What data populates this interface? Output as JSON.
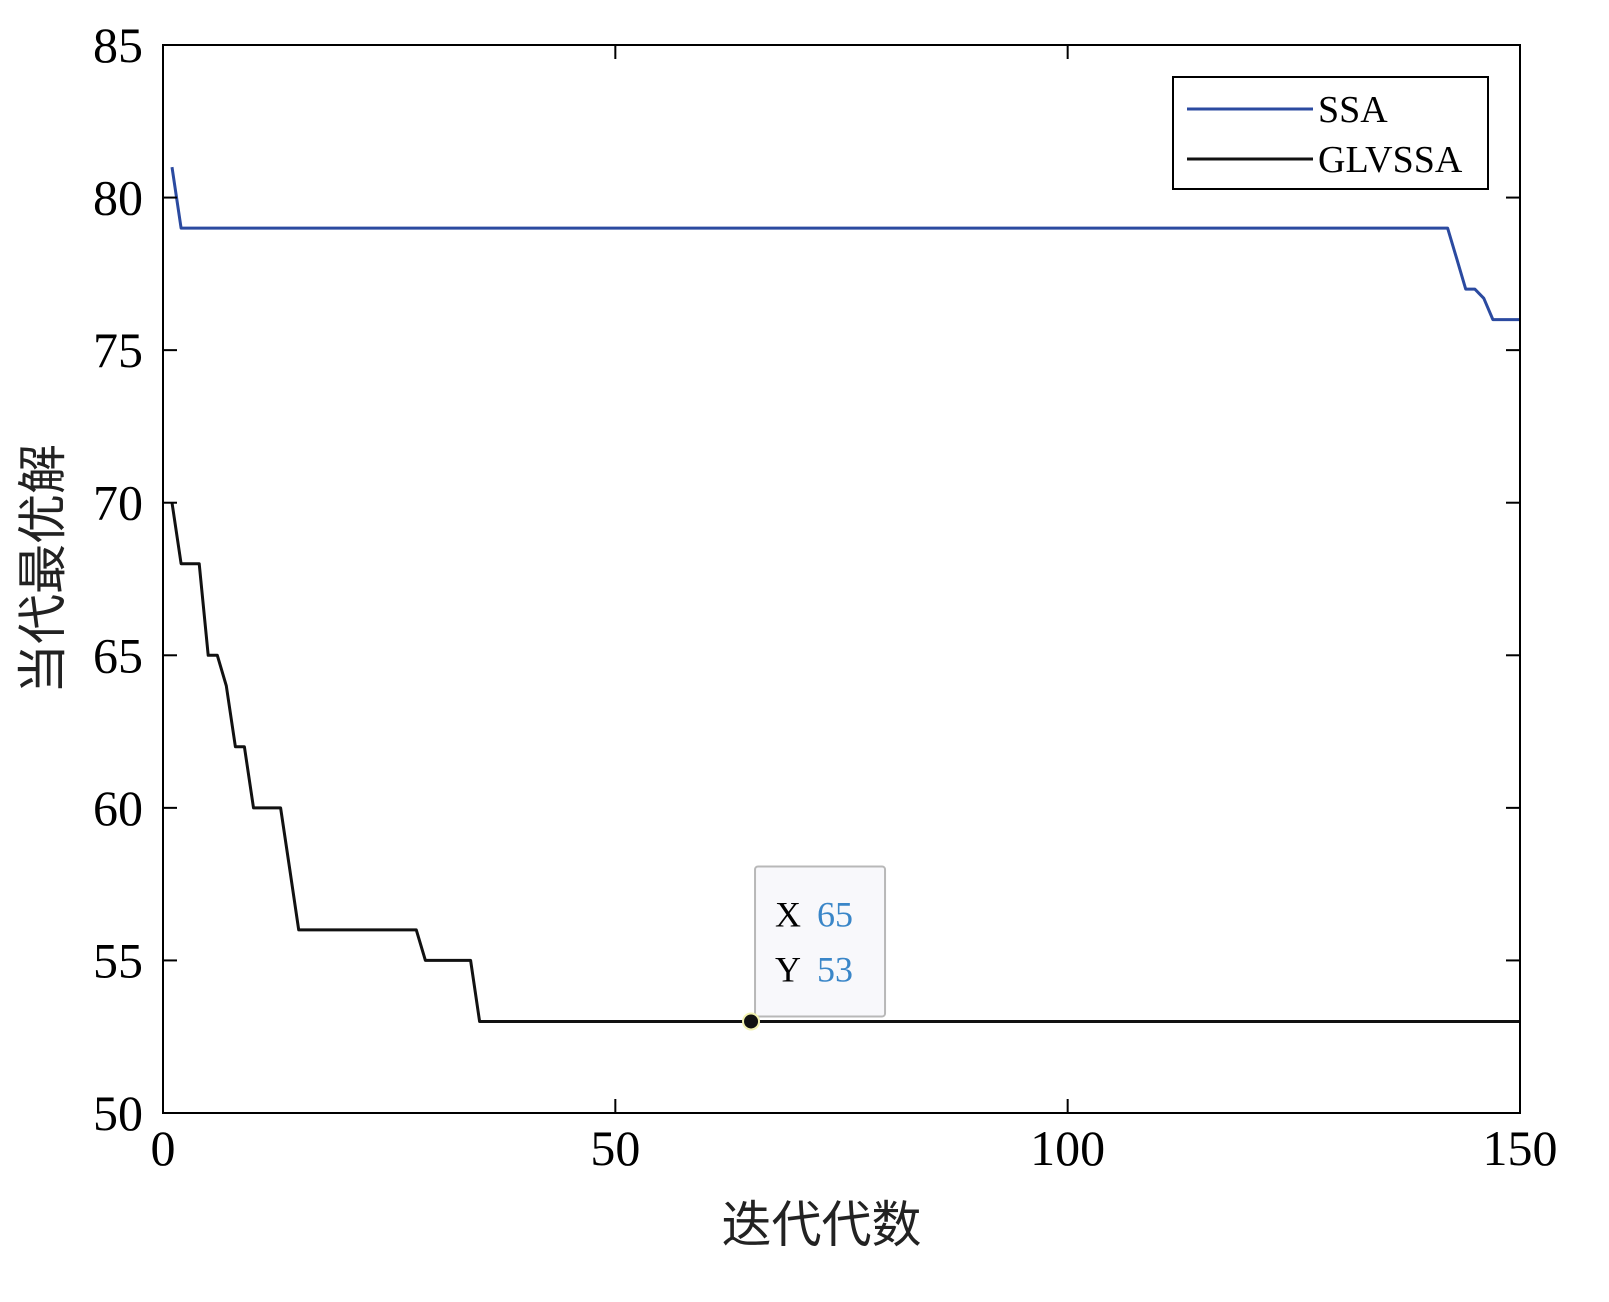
{
  "chart_data": {
    "type": "line",
    "title": "",
    "xlabel": "迭代代数",
    "ylabel": "当代最优解",
    "xlim": [
      0,
      150
    ],
    "ylim": [
      50,
      85
    ],
    "xticks": [
      0,
      50,
      100,
      150
    ],
    "yticks": [
      50,
      55,
      60,
      65,
      70,
      75,
      80,
      85
    ],
    "grid": false,
    "legend_position": "top-right",
    "series": [
      {
        "name": "SSA",
        "color": "#2b4aa0",
        "x": [
          1,
          2,
          142,
          143,
          144,
          145,
          146,
          147,
          148,
          150
        ],
        "y": [
          81,
          79,
          79,
          78,
          77,
          77,
          76.7,
          76,
          76,
          76
        ]
      },
      {
        "name": "GLVSSA",
        "color": "#111111",
        "x": [
          1,
          2,
          3,
          4,
          5,
          6,
          7,
          8,
          9,
          10,
          11,
          12,
          13,
          14,
          15,
          16,
          28,
          29,
          30,
          34,
          35,
          36,
          150
        ],
        "y": [
          70,
          68,
          68,
          68,
          65,
          65,
          64,
          62,
          62,
          60,
          60,
          60,
          60,
          58,
          56,
          56,
          56,
          55,
          55,
          55,
          53,
          53,
          53
        ]
      }
    ],
    "datatip": {
      "x_label": "X",
      "x_value": "65",
      "y_label": "Y",
      "y_value": "53",
      "x": 65,
      "y": 53
    }
  }
}
